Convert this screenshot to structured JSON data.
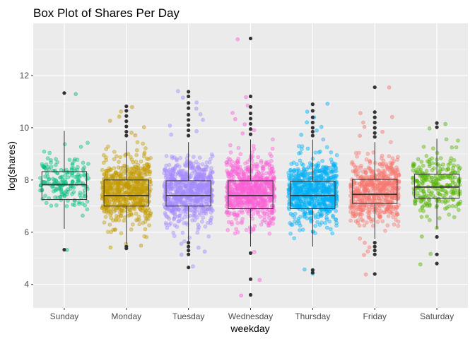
{
  "chart_data": {
    "type": "box",
    "title": "Box Plot of Shares Per Day",
    "xlabel": "weekday",
    "ylabel": "log(shares)",
    "ylim": [
      3.1,
      14.0
    ],
    "yticks": [
      4,
      6,
      8,
      10,
      12
    ],
    "grid": true,
    "jitter_points": true,
    "legend": "none",
    "categories": [
      "Sunday",
      "Monday",
      "Tuesday",
      "Wednesday",
      "Thursday",
      "Friday",
      "Saturday"
    ],
    "colors": [
      "#00BF7D",
      "#C49A00",
      "#A58AFF",
      "#FB61D7",
      "#00B0F6",
      "#F8766D",
      "#53B400"
    ],
    "boxes": [
      {
        "q1": 7.25,
        "median": 7.82,
        "q3": 8.32,
        "whisker_low": 6.13,
        "whisker_high": 9.88,
        "outliers": [
          11.33,
          5.33
        ],
        "n": 180,
        "spread": 0.55
      },
      {
        "q1": 7.0,
        "median": 7.4,
        "q3": 8.0,
        "whisker_low": 5.55,
        "whisker_high": 9.5,
        "outliers": [
          10.82,
          10.65,
          10.45,
          10.25,
          10.05,
          9.85,
          9.7,
          5.45,
          5.38
        ],
        "n": 650,
        "spread": 0.6
      },
      {
        "q1": 7.0,
        "median": 7.4,
        "q3": 7.97,
        "whisker_low": 5.65,
        "whisker_high": 9.45,
        "outliers": [
          11.38,
          11.2,
          10.95,
          10.75,
          10.5,
          10.3,
          10.1,
          9.9,
          9.7,
          5.6,
          5.45,
          5.3,
          5.15,
          4.65
        ],
        "n": 700,
        "spread": 0.6
      },
      {
        "q1": 6.9,
        "median": 7.4,
        "q3": 7.97,
        "whisker_low": 5.45,
        "whisker_high": 9.55,
        "outliers": [
          13.42,
          11.2,
          10.8,
          10.55,
          10.35,
          10.15,
          9.95,
          9.75,
          5.2,
          4.2,
          3.6
        ],
        "n": 720,
        "spread": 0.6
      },
      {
        "q1": 6.9,
        "median": 7.4,
        "q3": 7.95,
        "whisker_low": 5.45,
        "whisker_high": 9.55,
        "outliers": [
          10.9,
          10.65,
          10.4,
          10.2,
          10.0,
          9.85,
          9.7,
          4.55,
          4.45
        ],
        "n": 700,
        "spread": 0.6
      },
      {
        "q1": 7.1,
        "median": 7.45,
        "q3": 8.02,
        "whisker_low": 5.75,
        "whisker_high": 9.45,
        "outliers": [
          11.55,
          10.6,
          10.4,
          10.2,
          10.0,
          9.8,
          9.65,
          5.6,
          5.45,
          5.3,
          5.15,
          4.4
        ],
        "n": 550,
        "spread": 0.6
      },
      {
        "q1": 7.3,
        "median": 7.73,
        "q3": 8.22,
        "whisker_low": 6.13,
        "whisker_high": 9.58,
        "outliers": [
          10.18,
          10.02,
          5.82,
          5.15,
          4.8
        ],
        "n": 260,
        "spread": 0.6
      }
    ]
  }
}
